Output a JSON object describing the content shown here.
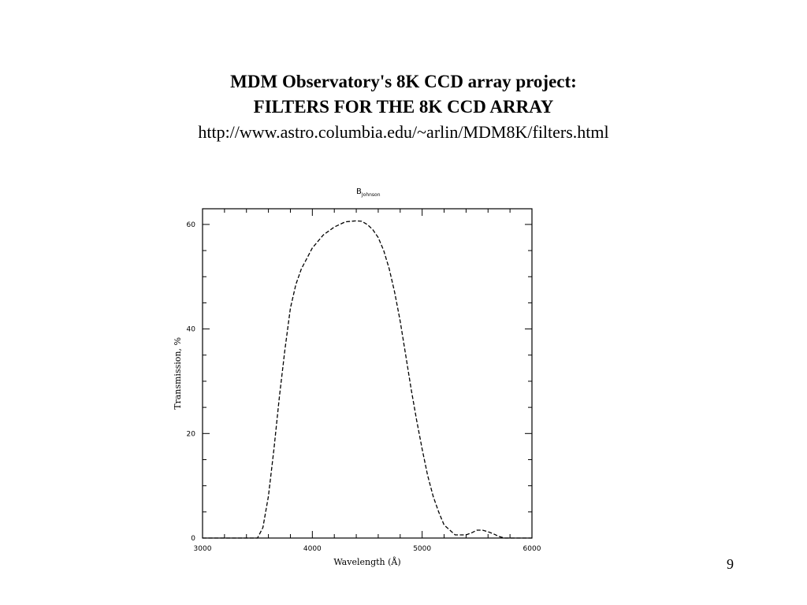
{
  "slide": {
    "title_line1": "MDM Observatory's 8K CCD array project:",
    "title_line2": "FILTERS FOR THE 8K CCD ARRAY",
    "url": "http://www.astro.columbia.edu/~arlin/MDM8K/filters.html",
    "page_number": "9"
  },
  "chart_data": {
    "type": "line",
    "title": "B",
    "title_subscript": "Johnson",
    "xlabel": "Wavelength (Å)",
    "ylabel": "Transmission, %",
    "xlim": [
      3000,
      6000
    ],
    "ylim": [
      0,
      63
    ],
    "x_ticks": [
      3000,
      4000,
      5000,
      6000
    ],
    "x_tick_labels": [
      "3000",
      "4000",
      "5000",
      "6000"
    ],
    "y_ticks": [
      0,
      20,
      40,
      60
    ],
    "y_tick_labels": [
      "0",
      "20",
      "40",
      "60"
    ],
    "grid": false,
    "line_style": "dashed",
    "series": [
      {
        "x": [
          3000,
          3500,
          3550,
          3600,
          3650,
          3700,
          3750,
          3800,
          3850,
          3900,
          3950,
          4000,
          4100,
          4200,
          4300,
          4400,
          4450,
          4500,
          4550,
          4600,
          4650,
          4700,
          4750,
          4800,
          4850,
          4900,
          4950,
          5000,
          5050,
          5100,
          5150,
          5200,
          5300,
          5350,
          5400,
          5450,
          5500,
          5550,
          5600,
          5650,
          5700,
          5750,
          5800,
          6000
        ],
        "y": [
          0,
          0,
          2,
          8,
          17,
          27,
          36,
          44,
          48.5,
          51.5,
          53.5,
          55.5,
          58,
          59.5,
          60.5,
          60.7,
          60.6,
          60,
          59,
          57.5,
          55,
          51.5,
          47,
          41.5,
          35,
          28.5,
          22.5,
          17,
          12,
          8,
          5,
          2.5,
          0.6,
          0.6,
          0.6,
          1,
          1.5,
          1.5,
          1.2,
          0.8,
          0.3,
          0,
          0,
          0
        ]
      }
    ]
  }
}
